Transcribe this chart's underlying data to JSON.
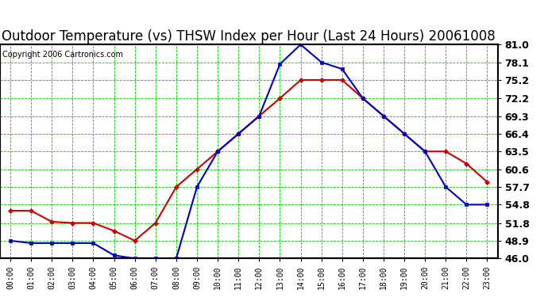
{
  "title": "Outdoor Temperature (vs) THSW Index per Hour (Last 24 Hours) 20061008",
  "copyright": "Copyright 2006 Cartronics.com",
  "hours": [
    "00:00",
    "01:00",
    "02:00",
    "03:00",
    "04:00",
    "05:00",
    "06:00",
    "07:00",
    "08:00",
    "09:00",
    "10:00",
    "11:00",
    "12:00",
    "13:00",
    "14:00",
    "15:00",
    "16:00",
    "17:00",
    "18:00",
    "19:00",
    "20:00",
    "21:00",
    "22:00",
    "23:00"
  ],
  "temp_blue": [
    48.9,
    48.5,
    48.5,
    48.5,
    48.5,
    46.5,
    46.0,
    46.0,
    46.0,
    57.7,
    63.5,
    66.4,
    69.3,
    77.8,
    81.0,
    78.1,
    77.0,
    72.2,
    69.3,
    66.4,
    63.5,
    57.7,
    54.8,
    54.8
  ],
  "thsw_red": [
    53.8,
    53.8,
    52.0,
    51.8,
    51.8,
    50.5,
    48.9,
    51.8,
    57.7,
    60.6,
    63.5,
    66.4,
    69.3,
    72.2,
    75.2,
    75.2,
    75.2,
    72.2,
    69.3,
    66.4,
    63.5,
    63.5,
    61.5,
    58.5
  ],
  "ylim": [
    46.0,
    81.0
  ],
  "yticks": [
    46.0,
    48.9,
    51.8,
    54.8,
    57.7,
    60.6,
    63.5,
    66.4,
    69.3,
    72.2,
    75.2,
    78.1,
    81.0
  ],
  "blue_color": "#0000cc",
  "red_color": "#cc0000",
  "grid_color": "#00cc00",
  "grid_minor_color": "#00cc00",
  "bg_color": "#ffffff",
  "plot_bg_color": "#ffffff",
  "title_fontsize": 12,
  "copyright_fontsize": 7,
  "ytick_fontsize": 9,
  "xtick_fontsize": 7
}
